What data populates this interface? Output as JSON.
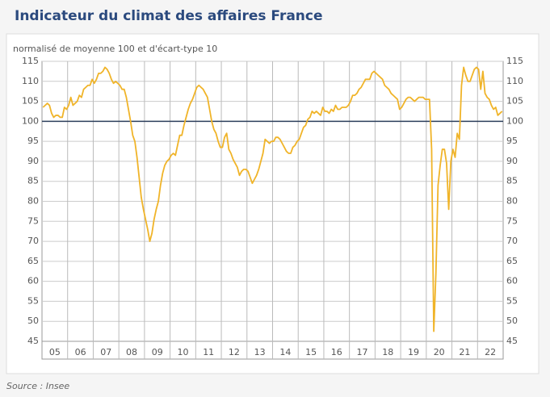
{
  "chart_data": {
    "type": "line",
    "title": "Indicateur du climat des affaires France",
    "subtitle": "normalisé de moyenne 100 et d'écart-type 10",
    "source": "Source : Insee",
    "categories": [
      null,
      null,
      null,
      null,
      null,
      "05",
      null,
      null,
      null,
      null,
      null,
      null,
      null,
      null,
      null,
      null,
      null,
      "06",
      null,
      null,
      null,
      null,
      null,
      null,
      null,
      null,
      null,
      null,
      null,
      "07",
      null,
      null,
      null,
      null,
      null,
      null,
      null,
      null,
      null,
      null,
      null,
      "08",
      null,
      null,
      null,
      null,
      null,
      null,
      null,
      null,
      null,
      null,
      null,
      "09",
      null,
      null,
      null,
      null,
      null,
      null,
      null,
      null,
      null,
      null,
      null,
      "10",
      null,
      null,
      null,
      null,
      null,
      null,
      null,
      null,
      null,
      null,
      null,
      "11",
      null,
      null,
      null,
      null,
      null,
      null,
      null,
      null,
      null,
      null,
      null,
      "12",
      null,
      null,
      null,
      null,
      null,
      null,
      null,
      null,
      null,
      null,
      null,
      "13",
      null,
      null,
      null,
      null,
      null,
      null,
      null,
      null,
      null,
      null,
      null,
      "14",
      null,
      null,
      null,
      null,
      null,
      null,
      null,
      null,
      null,
      null,
      null,
      "15",
      null,
      null,
      null,
      null,
      null,
      null,
      null,
      null,
      null,
      null,
      null,
      "16",
      null,
      null,
      null,
      null,
      null,
      null,
      null,
      null,
      null,
      null,
      null,
      "17",
      null,
      null,
      null,
      null,
      null,
      null,
      null,
      null,
      null,
      null,
      null,
      "18",
      null,
      null,
      null,
      null,
      null,
      null,
      null,
      null,
      null,
      null,
      null,
      "19",
      null,
      null,
      null,
      null,
      null,
      null,
      null,
      null,
      null,
      null,
      null,
      "20",
      null,
      null,
      null,
      null,
      null,
      null,
      null,
      null,
      null,
      null,
      null,
      "21",
      null,
      null,
      null,
      null,
      null,
      null,
      null,
      null,
      null,
      null,
      null,
      "22",
      null,
      null,
      null,
      null,
      null,
      null
    ],
    "series": [
      {
        "name": "Climat des affaires",
        "color": "#f0b429",
        "values": [
          103.5,
          104,
          104.5,
          104,
          102,
          101,
          101.5,
          101.5,
          101,
          101,
          103.5,
          103,
          104,
          106,
          104,
          104.5,
          105,
          106.5,
          106,
          108,
          108.5,
          109,
          109,
          110.5,
          109.5,
          110.5,
          112,
          112,
          112.5,
          113.5,
          113,
          112,
          110.5,
          109.5,
          110,
          109.5,
          109,
          108,
          108,
          106,
          103,
          100,
          96.5,
          95,
          91,
          86,
          81,
          78,
          75.5,
          73,
          70,
          72,
          75.5,
          78,
          80,
          84,
          87,
          89,
          90,
          90.5,
          91.5,
          92,
          91.5,
          94,
          96.5,
          96.5,
          99,
          101,
          103,
          104.5,
          105.5,
          107,
          108.5,
          109,
          108.5,
          108,
          107,
          106,
          103,
          100,
          98,
          97,
          95,
          93.5,
          93.5,
          96,
          97,
          93,
          92,
          90.5,
          89.5,
          88.5,
          86.5,
          87.5,
          88,
          88,
          87.5,
          86,
          84.5,
          85.5,
          86.5,
          88,
          90,
          92,
          95.5,
          95,
          94.5,
          95,
          95,
          96,
          96,
          95.5,
          94.5,
          93.5,
          92.5,
          92,
          92,
          93.5,
          94,
          95,
          95.5,
          97,
          98.5,
          99,
          100.5,
          101,
          102.5,
          102,
          102.5,
          102,
          101.5,
          103.5,
          102.5,
          102.5,
          102,
          103,
          102.5,
          104,
          103,
          103,
          103.5,
          103.5,
          103.5,
          104,
          105,
          106.5,
          106.5,
          107,
          108,
          108.5,
          109.5,
          110.5,
          110.5,
          110.5,
          112,
          112.5,
          112,
          111.5,
          111,
          110.5,
          109,
          108.5,
          108,
          107,
          106.5,
          106,
          105.5,
          103,
          103.5,
          104.5,
          105.5,
          106,
          106,
          105.5,
          105,
          105.5,
          106,
          106,
          106,
          105.5,
          105.5,
          105.5,
          93,
          47.5,
          62,
          84,
          89,
          93,
          93,
          89.5,
          78,
          90,
          93,
          91,
          97,
          95.5,
          109,
          113.5,
          111.5,
          110,
          110,
          111.5,
          113,
          113.5,
          113,
          108,
          112.5,
          107,
          106,
          105.5,
          104,
          103,
          103.5,
          101.5,
          102,
          102.5
        ]
      }
    ],
    "ylim": [
      45,
      115
    ],
    "yticks": [
      45,
      50,
      55,
      60,
      65,
      70,
      75,
      80,
      85,
      90,
      95,
      100,
      105,
      110,
      115
    ],
    "reference_line": 100,
    "grid": true
  }
}
